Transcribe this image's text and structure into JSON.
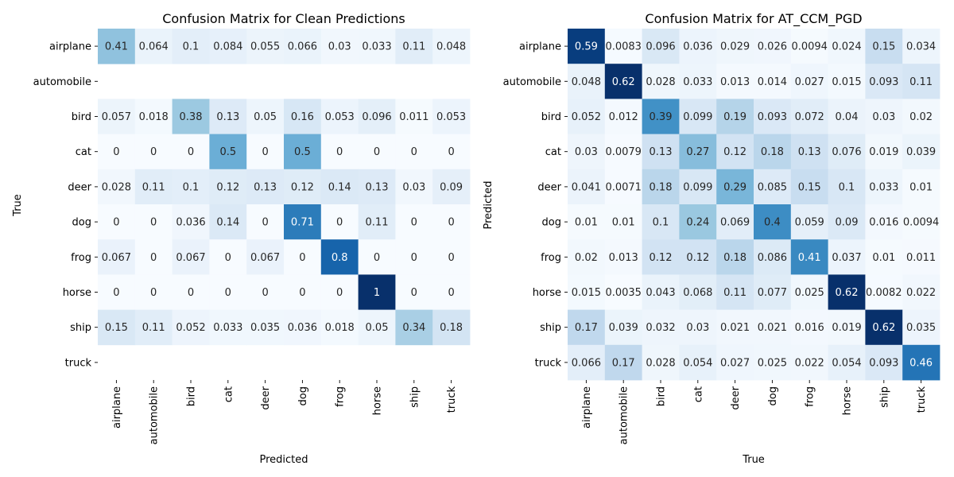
{
  "chart_data": [
    {
      "type": "heatmap",
      "title": "Confusion Matrix for Clean Predictions",
      "xlabel": "Predicted",
      "ylabel": "True",
      "categories": [
        "airplane",
        "automobile",
        "bird",
        "cat",
        "deer",
        "dog",
        "frog",
        "horse",
        "ship",
        "truck"
      ],
      "colormap": "Blues",
      "colorbar": false,
      "values": [
        [
          "0.41",
          "0.064",
          "0.1",
          "0.084",
          "0.055",
          "0.066",
          "0.03",
          "0.033",
          "0.11",
          "0.048"
        ],
        [
          null,
          null,
          null,
          null,
          null,
          null,
          null,
          null,
          null,
          null
        ],
        [
          "0.057",
          "0.018",
          "0.38",
          "0.13",
          "0.05",
          "0.16",
          "0.053",
          "0.096",
          "0.011",
          "0.053"
        ],
        [
          "0",
          "0",
          "0",
          "0.5",
          "0",
          "0.5",
          "0",
          "0",
          "0",
          "0"
        ],
        [
          "0.028",
          "0.11",
          "0.1",
          "0.12",
          "0.13",
          "0.12",
          "0.14",
          "0.13",
          "0.03",
          "0.09"
        ],
        [
          "0",
          "0",
          "0.036",
          "0.14",
          "0",
          "0.71",
          "0",
          "0.11",
          "0",
          "0"
        ],
        [
          "0.067",
          "0",
          "0.067",
          "0",
          "0.067",
          "0",
          "0.8",
          "0",
          "0",
          "0"
        ],
        [
          "0",
          "0",
          "0",
          "0",
          "0",
          "0",
          "0",
          "1",
          "0",
          "0"
        ],
        [
          "0.15",
          "0.11",
          "0.052",
          "0.033",
          "0.035",
          "0.036",
          "0.018",
          "0.05",
          "0.34",
          "0.18"
        ],
        [
          null,
          null,
          null,
          null,
          null,
          null,
          null,
          null,
          null,
          null
        ]
      ]
    },
    {
      "type": "heatmap",
      "title": "Confusion Matrix for AT_CCM_PGD",
      "xlabel": "True",
      "ylabel": "Predicted",
      "categories": [
        "airplane",
        "automobile",
        "bird",
        "cat",
        "deer",
        "dog",
        "frog",
        "horse",
        "ship",
        "truck"
      ],
      "colormap": "Blues",
      "colorbar": false,
      "values": [
        [
          "0.59",
          "0.0083",
          "0.096",
          "0.036",
          "0.029",
          "0.026",
          "0.0094",
          "0.024",
          "0.15",
          "0.034"
        ],
        [
          "0.048",
          "0.62",
          "0.028",
          "0.033",
          "0.013",
          "0.014",
          "0.027",
          "0.015",
          "0.093",
          "0.11"
        ],
        [
          "0.052",
          "0.012",
          "0.39",
          "0.099",
          "0.19",
          "0.093",
          "0.072",
          "0.04",
          "0.03",
          "0.02"
        ],
        [
          "0.03",
          "0.0079",
          "0.13",
          "0.27",
          "0.12",
          "0.18",
          "0.13",
          "0.076",
          "0.019",
          "0.039"
        ],
        [
          "0.041",
          "0.0071",
          "0.18",
          "0.099",
          "0.29",
          "0.085",
          "0.15",
          "0.1",
          "0.033",
          "0.01"
        ],
        [
          "0.01",
          "0.01",
          "0.1",
          "0.24",
          "0.069",
          "0.4",
          "0.059",
          "0.09",
          "0.016",
          "0.0094"
        ],
        [
          "0.02",
          "0.013",
          "0.12",
          "0.12",
          "0.18",
          "0.086",
          "0.41",
          "0.037",
          "0.01",
          "0.011"
        ],
        [
          "0.015",
          "0.0035",
          "0.043",
          "0.068",
          "0.11",
          "0.077",
          "0.025",
          "0.62",
          "0.0082",
          "0.022"
        ],
        [
          "0.17",
          "0.039",
          "0.032",
          "0.03",
          "0.021",
          "0.021",
          "0.016",
          "0.019",
          "0.62",
          "0.035"
        ],
        [
          "0.066",
          "0.17",
          "0.028",
          "0.054",
          "0.027",
          "0.025",
          "0.022",
          "0.054",
          "0.093",
          "0.46"
        ]
      ]
    }
  ]
}
